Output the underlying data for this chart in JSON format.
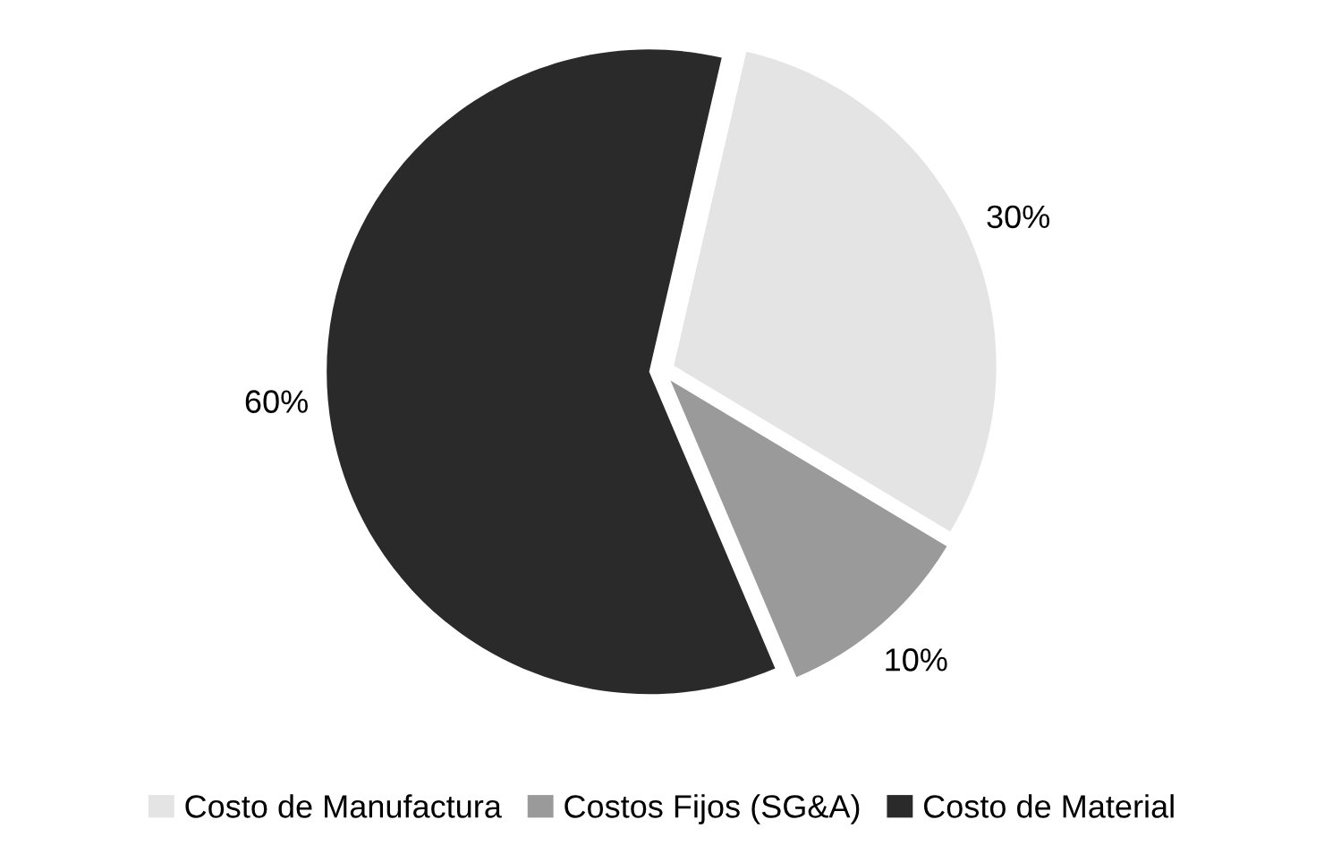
{
  "chart_data": {
    "type": "pie",
    "categories": [
      "Costo de Manufactura",
      "Costos Fijos (SG&A)",
      "Costo de Material"
    ],
    "values": [
      30,
      10,
      60
    ],
    "value_labels": [
      "30%",
      "10%",
      "60%"
    ],
    "colors": [
      "#e4e4e4",
      "#9a9a9a",
      "#2a2a2a"
    ],
    "legend": "bottom"
  }
}
